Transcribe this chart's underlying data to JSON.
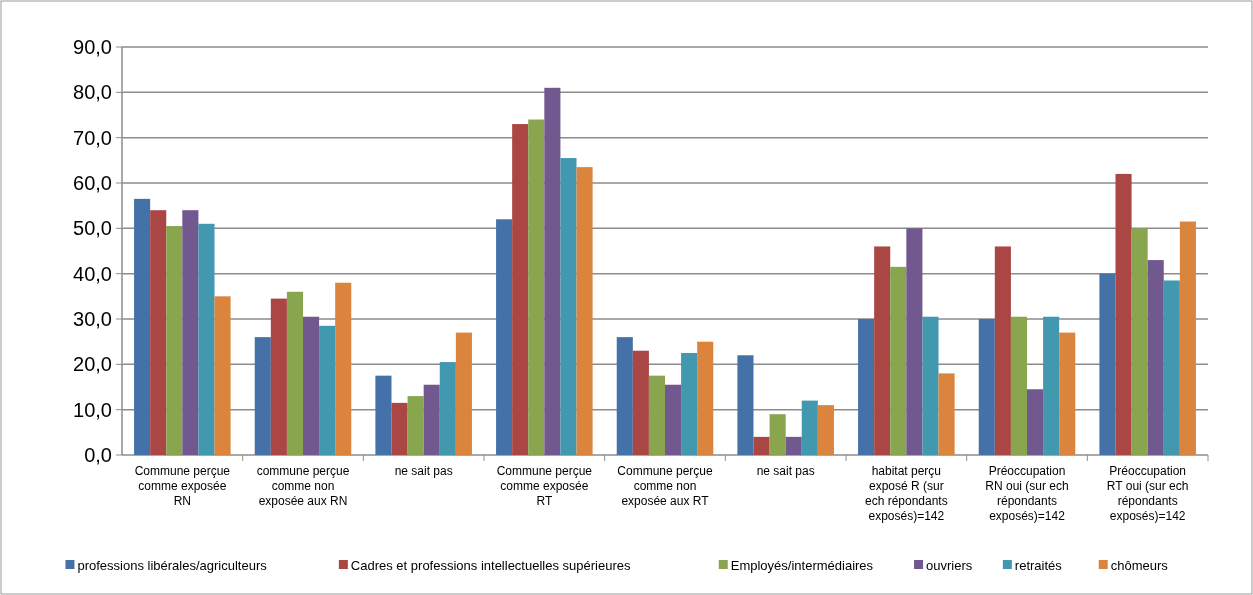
{
  "chart_data": {
    "type": "bar",
    "categories": [
      "Commune perçue comme exposée RN",
      "commune perçue comme non exposée aux RN",
      "ne sait pas",
      "Commune perçue comme exposée RT",
      "Commune perçue comme non exposée aux RT",
      "ne sait pas",
      "habitat perçu exposé R (sur ech répondants exposés)=142",
      "Préoccupation RN oui (sur ech répondants exposés)=142",
      "Préoccupation RT oui (sur ech répondants exposés)=142"
    ],
    "series": [
      {
        "name": "professions libérales/agriculteurs",
        "color": "#4472a8",
        "values": [
          56.5,
          26,
          17.5,
          52,
          26,
          22,
          30,
          30,
          40
        ]
      },
      {
        "name": "Cadres et professions intellectuelles supérieures",
        "color": "#aa4643",
        "values": [
          54,
          34.5,
          11.5,
          73,
          23,
          4,
          46,
          46,
          62
        ]
      },
      {
        "name": "Employés/intermédiaires",
        "color": "#89a54e",
        "values": [
          50.5,
          36,
          13,
          74,
          17.5,
          9,
          41.5,
          30.5,
          50
        ]
      },
      {
        "name": "ouvriers",
        "color": "#71588f",
        "values": [
          54,
          30.5,
          15.5,
          81,
          15.5,
          4,
          50,
          14.5,
          43
        ]
      },
      {
        "name": "retraités",
        "color": "#4198af",
        "values": [
          51,
          28.5,
          20.5,
          65.5,
          22.5,
          12,
          30.5,
          30.5,
          38.5
        ]
      },
      {
        "name": "chômeurs",
        "color": "#db843d",
        "values": [
          35,
          38,
          27,
          63.5,
          25,
          11,
          18,
          27,
          51.5
        ]
      }
    ],
    "ylim": [
      0,
      90
    ],
    "yticks": [
      {
        "value": 0,
        "label": "0,0"
      },
      {
        "value": 10,
        "label": "10,0"
      },
      {
        "value": 20,
        "label": "20,0"
      },
      {
        "value": 30,
        "label": "30,0"
      },
      {
        "value": 40,
        "label": "40,0"
      },
      {
        "value": 50,
        "label": "50,0"
      },
      {
        "value": 60,
        "label": "60,0"
      },
      {
        "value": 70,
        "label": "70,0"
      },
      {
        "value": 80,
        "label": "80,0"
      },
      {
        "value": 90,
        "label": "90,0"
      }
    ],
    "grid": "y",
    "legend": "bottom"
  }
}
